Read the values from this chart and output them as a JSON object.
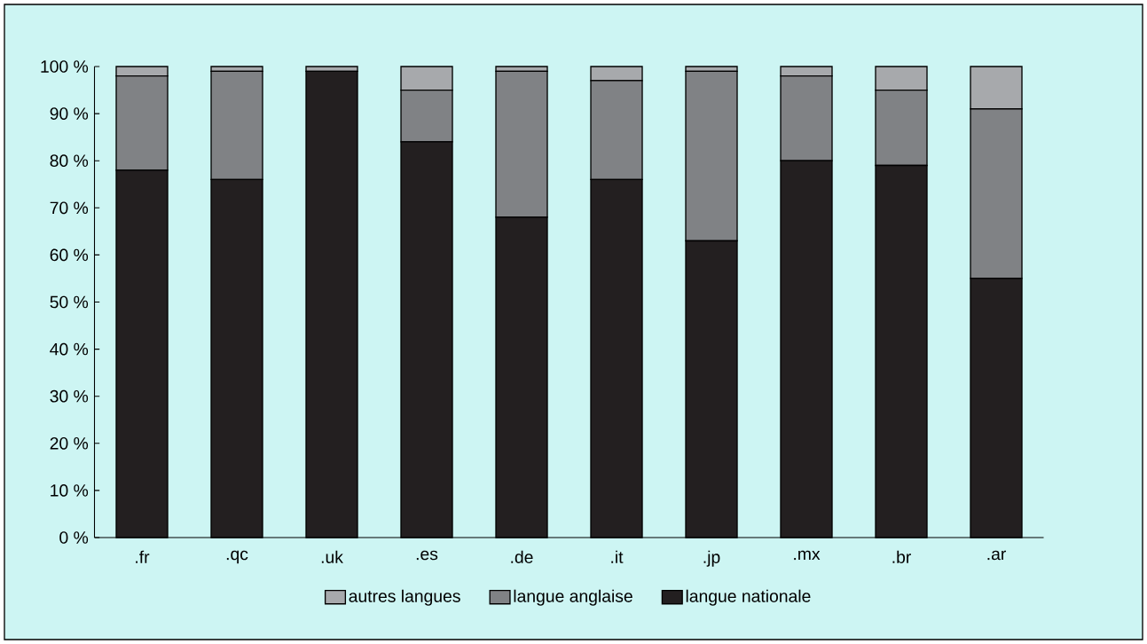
{
  "chart_data": {
    "type": "bar",
    "stacked": true,
    "categories": [
      ".fr",
      ".qc",
      ".uk",
      ".es",
      ".de",
      ".it",
      ".jp",
      ".mx",
      ".br",
      ".ar"
    ],
    "series": [
      {
        "name": "langue nationale",
        "color": "#231f20",
        "values": [
          78,
          76,
          99,
          84,
          68,
          76,
          63,
          80,
          79,
          55
        ]
      },
      {
        "name": "langue anglaise",
        "color": "#808285",
        "values": [
          20,
          23,
          0,
          11,
          31,
          21,
          36,
          18,
          16,
          36
        ]
      },
      {
        "name": "autres langues",
        "color": "#a7a9ac",
        "values": [
          2,
          1,
          1,
          5,
          1,
          3,
          1,
          2,
          5,
          9
        ]
      }
    ],
    "ylim": [
      0,
      100
    ],
    "yticks": [
      {
        "value": 0,
        "label": "0 %"
      },
      {
        "value": 10,
        "label": "10 %"
      },
      {
        "value": 20,
        "label": "20 %"
      },
      {
        "value": 30,
        "label": "30 %"
      },
      {
        "value": 40,
        "label": "40 %"
      },
      {
        "value": 50,
        "label": "50 %"
      },
      {
        "value": 60,
        "label": "60 %"
      },
      {
        "value": 70,
        "label": "70 %"
      },
      {
        "value": 80,
        "label": "80 %"
      },
      {
        "value": 90,
        "label": "90 %"
      },
      {
        "value": 100,
        "label": "100 %"
      }
    ],
    "legend": "bottom"
  }
}
